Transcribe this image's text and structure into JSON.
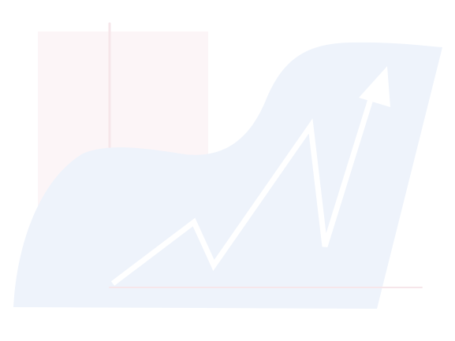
{
  "illustration": {
    "icon": "trend-up-arrow-icon",
    "colors": {
      "background": "#ffffff",
      "blob": "#eef3fb",
      "panel": "#fcf5f7",
      "axis": "#f6e6ea",
      "trend_line": "#ffffff"
    }
  }
}
